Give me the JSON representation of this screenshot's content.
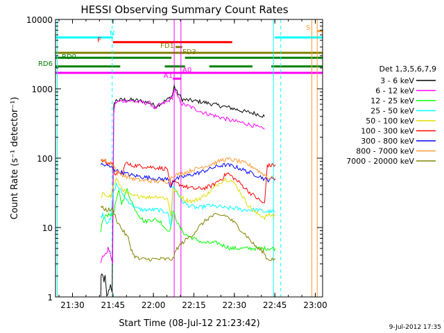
{
  "chart_data": {
    "type": "line",
    "title": "HESSI Observing Summary Count Rates",
    "ylabel": "Count Rate (s⁻¹ detector⁻¹)",
    "xlabel": "Start Time (08-Jul-12 21:23:42)",
    "x_unit": "minutes after 21:23:42",
    "xlim": [
      0,
      99
    ],
    "ylim": [
      1,
      10000
    ],
    "yscale": "log",
    "x_ticks": [
      {
        "t": 6.3,
        "label": "21:30"
      },
      {
        "t": 21.3,
        "label": "21:45"
      },
      {
        "t": 36.3,
        "label": "22:00"
      },
      {
        "t": 51.3,
        "label": "22:15"
      },
      {
        "t": 66.3,
        "label": "22:30"
      },
      {
        "t": 81.3,
        "label": "22:45"
      },
      {
        "t": 96.3,
        "label": "23:00"
      }
    ],
    "y_ticks": [
      {
        "v": 1,
        "label": "1"
      },
      {
        "v": 10,
        "label": "10"
      },
      {
        "v": 100,
        "label": "100"
      },
      {
        "v": 1000,
        "label": "1000"
      },
      {
        "v": 10000,
        "label": "10000"
      }
    ],
    "legend_title": "Det 1,3,5,6,7,9",
    "legend_position": "right",
    "series": [
      {
        "name": "3 - 6 keV",
        "color": "#000000",
        "x": [
          16.8,
          16.9,
          17.5,
          18.0,
          18.4,
          19.0,
          19.7,
          20.4,
          21.0,
          21.6,
          22.0,
          22.5,
          26,
          30,
          33,
          35,
          37,
          38.5,
          41.5,
          43.3,
          44,
          45,
          47,
          50,
          55,
          60,
          65,
          70,
          74,
          76,
          77.5
        ],
        "y": [
          1,
          2,
          2,
          1.7,
          2,
          1,
          1.2,
          1.5,
          1.2,
          550,
          650,
          680,
          700,
          680,
          650,
          630,
          560,
          600,
          700,
          800,
          1100,
          900,
          700,
          680,
          640,
          580,
          530,
          470,
          440,
          420,
          400
        ]
      },
      {
        "name": "6 - 12 keV",
        "color": "#ff00ff",
        "x": [
          16.8,
          17.5,
          18.5,
          19.5,
          20.5,
          21.2,
          21.6,
          22.0,
          22.5,
          26,
          30,
          33,
          35,
          37,
          38.5,
          41.5,
          43.3,
          44,
          45,
          47,
          50,
          55,
          60,
          65,
          70,
          74,
          76,
          77.5
        ],
        "y": [
          3,
          4,
          4,
          5,
          4,
          3,
          450,
          600,
          640,
          680,
          650,
          630,
          620,
          520,
          580,
          650,
          750,
          1000,
          800,
          600,
          550,
          450,
          400,
          350,
          320,
          290,
          270,
          260
        ]
      },
      {
        "name": "12 - 25 keV",
        "color": "#00ff00",
        "x": [
          16.8,
          17.5,
          19,
          20,
          21,
          21.8,
          22.5,
          23.5,
          24.5,
          25.5,
          26.5,
          27.5,
          29,
          31,
          33,
          35,
          37,
          39,
          41.5,
          42.8,
          43.5,
          44.5,
          46,
          48,
          51,
          55,
          60,
          65,
          70,
          74,
          76,
          77.5,
          78.5,
          79.5,
          80.5,
          81.5
        ],
        "y": [
          9,
          13,
          15,
          16,
          15,
          18,
          25,
          33,
          22,
          28,
          35,
          28,
          20,
          15,
          12,
          13,
          13,
          12,
          9,
          10,
          17,
          14,
          10,
          8,
          7,
          6,
          6,
          5,
          5,
          5,
          5,
          5,
          5,
          5,
          5,
          5
        ]
      },
      {
        "name": "25 - 50 keV",
        "color": "#00ffff",
        "x": [
          16.8,
          17.5,
          19,
          20.5,
          21.3,
          22.5,
          24,
          26,
          28,
          30,
          32,
          34,
          36,
          38,
          40,
          41.5,
          42.8,
          43.5,
          44.5,
          45.5,
          47,
          49,
          51,
          53,
          55,
          57,
          59,
          61,
          63,
          65,
          67,
          69,
          71,
          73,
          75,
          77,
          78.5,
          79.5,
          81.5
        ],
        "y": [
          14,
          16,
          12,
          13,
          30,
          42,
          35,
          26,
          22,
          19,
          18,
          18,
          18,
          18,
          17,
          17,
          10,
          40,
          35,
          30,
          24,
          21,
          20,
          19,
          20,
          21,
          20,
          20,
          19,
          19,
          19,
          18,
          18,
          18,
          18,
          17,
          17,
          17,
          17
        ]
      },
      {
        "name": "50 - 100 keV",
        "color": "#dddd00",
        "x": [
          16.8,
          17.5,
          19,
          20.5,
          21.3,
          22.5,
          24,
          26,
          28,
          30,
          32,
          34,
          36,
          38,
          40,
          41.5,
          42.8,
          43.5,
          45,
          48,
          51,
          54,
          57,
          59,
          61,
          63,
          65,
          67,
          69,
          71,
          73,
          74.5,
          76,
          77.5,
          78.5,
          79.5,
          81.5
        ],
        "y": [
          26,
          30,
          30,
          28,
          38,
          50,
          40,
          32,
          29,
          28,
          29,
          27,
          28,
          28,
          27,
          26,
          15,
          36,
          32,
          25,
          24,
          27,
          32,
          38,
          45,
          50,
          48,
          40,
          30,
          22,
          18,
          16,
          15,
          14,
          15,
          15,
          15
        ]
      },
      {
        "name": "100 - 300 keV",
        "color": "#ff0000",
        "x": [
          16.8,
          17.5,
          19,
          21.3,
          22,
          25,
          26,
          27,
          30,
          33,
          36,
          39,
          41.5,
          42.8,
          43.5,
          46,
          49,
          52,
          55,
          58,
          60,
          62,
          63,
          64,
          66,
          68,
          70,
          72,
          74,
          76,
          77.5,
          78.5,
          79.5,
          81.5
        ],
        "y": [
          95,
          92,
          88,
          80,
          60,
          60,
          90,
          80,
          78,
          76,
          74,
          72,
          70,
          38,
          45,
          42,
          38,
          36,
          37,
          40,
          46,
          52,
          58,
          60,
          52,
          45,
          38,
          32,
          28,
          24,
          22,
          80,
          78,
          80
        ]
      },
      {
        "name": "300 - 800 keV",
        "color": "#0000ff",
        "x": [
          16.8,
          17.5,
          19,
          21.3,
          23,
          26,
          29,
          32,
          35,
          38,
          41.5,
          42.8,
          43.5,
          46,
          49,
          52,
          55,
          58,
          61,
          63,
          65,
          68,
          71,
          74,
          76,
          77.5,
          78.5,
          79.5,
          81.5
        ],
        "y": [
          82,
          80,
          78,
          72,
          65,
          60,
          56,
          54,
          52,
          50,
          50,
          38,
          48,
          52,
          56,
          60,
          65,
          72,
          78,
          80,
          78,
          72,
          64,
          58,
          54,
          50,
          48,
          50,
          50
        ]
      },
      {
        "name": "800 - 7000 keV",
        "color": "#ff9933",
        "x": [
          16.8,
          17.5,
          19,
          21.3,
          23,
          26,
          29,
          32,
          35,
          38,
          41.5,
          43,
          45,
          48,
          51,
          54,
          57,
          60,
          62,
          64,
          66,
          68,
          71,
          74,
          76,
          77.5,
          78.5,
          79.5,
          81.5
        ],
        "y": [
          97,
          95,
          90,
          82,
          62,
          55,
          50,
          48,
          47,
          46,
          46,
          54,
          58,
          62,
          68,
          74,
          80,
          88,
          95,
          96,
          94,
          90,
          82,
          72,
          62,
          58,
          52,
          52,
          52
        ]
      },
      {
        "name": "7000 - 20000 keV",
        "color": "#808000",
        "x": [
          16.8,
          17.5,
          19,
          21.3,
          23,
          25,
          27,
          28,
          29,
          31,
          33,
          35,
          37,
          39,
          41.5,
          43.5,
          45,
          47,
          49,
          51,
          53,
          55,
          57,
          59,
          61,
          63,
          65,
          67,
          69,
          71,
          73,
          75,
          77,
          78.5,
          79.5,
          81.5
        ],
        "y": [
          20,
          19,
          18,
          18,
          12,
          9,
          7,
          5,
          4,
          3.5,
          3.5,
          3.5,
          3.5,
          3.5,
          3.5,
          3.5,
          5,
          6,
          7,
          8,
          10,
          12,
          14,
          15,
          15,
          15,
          13,
          11,
          9,
          7.5,
          6,
          5,
          4.5,
          3.5,
          3.5,
          3.5
        ]
      }
    ],
    "flag_bars": [
      {
        "label": "N",
        "color": "#00ffff",
        "segments": [
          [
            0,
            21.3
          ],
          [
            81.3,
            99
          ]
        ],
        "level": 5500
      },
      {
        "label": "S",
        "color": "#ff9933",
        "segments": [
          [
            97,
            99
          ]
        ],
        "level": 6800
      },
      {
        "label": "F",
        "color": "#ff0000",
        "segments": [
          [
            21.3,
            65.5
          ]
        ],
        "level": 4700
      },
      {
        "label": "FD1",
        "color": "#808000",
        "segments": [
          [
            44.5,
            47
          ]
        ],
        "level": 4000
      },
      {
        "label": "FD3",
        "color": "#808000",
        "segments": [
          [
            0,
            99
          ]
        ],
        "level": 3300
      },
      {
        "label": "RD0",
        "color": "#008000",
        "segments": [
          [
            0,
            43
          ],
          [
            48,
            99
          ]
        ],
        "level": 2800
      },
      {
        "label": "RD6",
        "color": "#008000",
        "segments": [
          [
            0,
            24
          ],
          [
            40.5,
            48
          ],
          [
            57,
            73
          ],
          [
            80,
            99
          ]
        ],
        "level": 2100
      },
      {
        "label": "A0",
        "color": "#ff00ff",
        "segments": [
          [
            0,
            99
          ]
        ],
        "level": 1700
      },
      {
        "label": "A1",
        "color": "#ff00ff",
        "segments": [
          [
            43.5,
            46.5
          ]
        ],
        "level": 1400
      }
    ],
    "vertical_markers": [
      {
        "t": 0.7,
        "color": "#00ffff",
        "style": "solid"
      },
      {
        "t": 21.0,
        "color": "#00ffff",
        "style": "dashed"
      },
      {
        "t": 44.0,
        "color": "#ff00ff",
        "style": "solid"
      },
      {
        "t": 46.5,
        "color": "#ff00ff",
        "style": "solid"
      },
      {
        "t": 80.8,
        "color": "#00ffff",
        "style": "solid"
      },
      {
        "t": 83.5,
        "color": "#00ffff",
        "style": "dashed"
      },
      {
        "t": 95.0,
        "color": "#ff9933",
        "style": "solid"
      },
      {
        "t": 97.0,
        "color": "#ff9933",
        "style": "solid"
      }
    ]
  },
  "footer_date": "9-Jul-2012 17:35"
}
